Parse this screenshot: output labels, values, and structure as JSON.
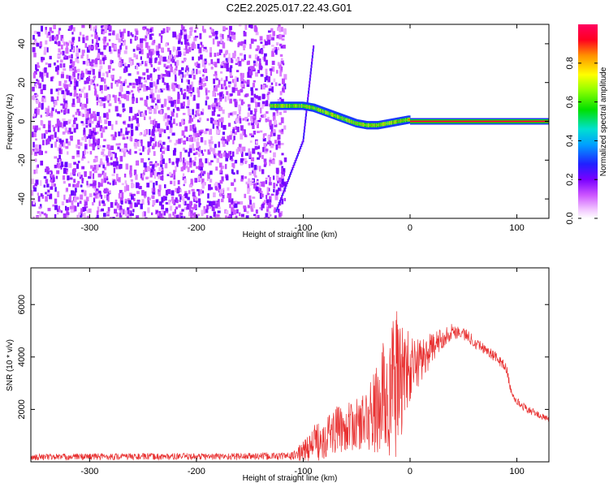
{
  "title": "C2E2.2025.017.22.43.G01",
  "chart_data": [
    {
      "type": "heatmap",
      "xlabel": "Height of straight line (km)",
      "ylabel": "Frequency (Hz)",
      "xlim": [
        -355,
        130
      ],
      "ylim": [
        -50,
        50
      ],
      "xticks": [
        -300,
        -200,
        -100,
        0,
        100
      ],
      "yticks": [
        -40,
        -20,
        0,
        20,
        40
      ],
      "colorbar": {
        "label": "Normalized spectral amplitude",
        "range": [
          0,
          1
        ],
        "ticks": [
          "0.0",
          "0.2",
          "0.4",
          "0.6",
          "0.8"
        ],
        "colormap": "white-magenta-purple-blue-cyan-green-yellow-red"
      },
      "noise_region": {
        "x_range": [
          -355,
          -118
        ],
        "y_range": [
          -50,
          50
        ],
        "amplitude": [
          0.05,
          0.22
        ]
      },
      "features": [
        {
          "kind": "spectral_line",
          "x": [
            -130,
            -120,
            -110,
            -100,
            -90,
            -80,
            -70,
            -60,
            -50,
            -40,
            -30,
            -20,
            -10,
            0
          ],
          "y": [
            8,
            8,
            8,
            8,
            7,
            5,
            3,
            1,
            -1,
            -2,
            -2,
            -1,
            0,
            1
          ],
          "amplitude": 0.9
        },
        {
          "kind": "steady_tone",
          "x_range": [
            0,
            130
          ],
          "y": 0,
          "amplitude": 0.95
        },
        {
          "kind": "doppler_trace",
          "x": [
            -125,
            -100,
            -90
          ],
          "y": [
            -46,
            -10,
            40
          ],
          "amplitude": 0.2
        }
      ]
    },
    {
      "type": "line",
      "xlabel": "Height of straight line (km)",
      "ylabel": "SNR (10 * v/v)",
      "xlim": [
        -355,
        130
      ],
      "ylim": [
        0,
        7400
      ],
      "xticks": [
        -300,
        -200,
        -100,
        0,
        100
      ],
      "yticks": [
        2000,
        4000,
        6000
      ],
      "color": "#e83030",
      "envelope": {
        "x": [
          -355,
          -300,
          -250,
          -200,
          -150,
          -110,
          -100,
          -90,
          -80,
          -70,
          -60,
          -50,
          -40,
          -30,
          -25,
          -20,
          -15,
          -10,
          -5,
          0,
          10,
          20,
          30,
          40,
          50,
          60,
          70,
          80,
          85,
          90,
          95,
          100,
          110,
          120,
          130
        ],
        "mean": [
          180,
          200,
          200,
          200,
          210,
          220,
          400,
          700,
          1000,
          1200,
          1300,
          1400,
          1600,
          2000,
          2400,
          2600,
          2800,
          3200,
          3400,
          3500,
          3900,
          4300,
          4700,
          5000,
          4900,
          4600,
          4300,
          4000,
          3800,
          3600,
          2600,
          2300,
          2000,
          1800,
          1600
        ],
        "spread": [
          120,
          130,
          130,
          130,
          140,
          150,
          400,
          700,
          900,
          900,
          900,
          1000,
          1200,
          1900,
          2300,
          2800,
          3000,
          2600,
          2000,
          1300,
          900,
          600,
          400,
          300,
          250,
          250,
          200,
          200,
          200,
          200,
          150,
          150,
          150,
          120,
          120
        ]
      }
    }
  ]
}
